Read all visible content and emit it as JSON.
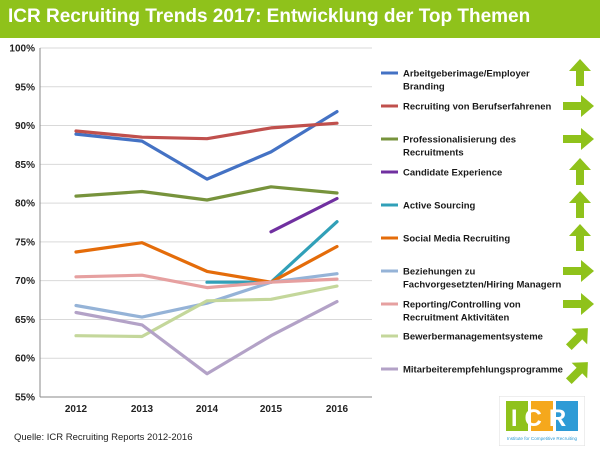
{
  "header": {
    "title": "ICR Recruiting Trends 2017: Entwicklung der Top Themen"
  },
  "footer": {
    "source": "Quelle: ICR Recruiting Reports 2012-2016"
  },
  "logo": {
    "text": "ICR",
    "tagline": "Institute for Competitive Recruiting"
  },
  "colors": {
    "title_bar": "#8fc21b",
    "arrow": "#8fc21b"
  },
  "chart_data": {
    "type": "line",
    "title": "ICR Recruiting Trends 2017: Entwicklung der Top Themen",
    "x": [
      "2012",
      "2013",
      "2014",
      "2015",
      "2016"
    ],
    "ylim": [
      55,
      100
    ],
    "yticks": [
      55,
      60,
      65,
      70,
      75,
      80,
      85,
      90,
      95,
      100
    ],
    "ytick_labels": [
      "55%",
      "60%",
      "65%",
      "70%",
      "75%",
      "80%",
      "85%",
      "90%",
      "95%",
      "100%"
    ],
    "legend_position": "right",
    "series": [
      {
        "name": "Arbeitgeberimage/Employer Branding",
        "label_lines": [
          "Arbeitgeberimage/Employer",
          "Branding"
        ],
        "color": "#4472c4",
        "values": [
          88.9,
          88.0,
          83.1,
          86.6,
          91.8
        ],
        "trend": "up"
      },
      {
        "name": "Recruiting von Berufserfahrenen",
        "label_lines": [
          "Recruiting von Berufserfahrenen"
        ],
        "color": "#c0504d",
        "values": [
          89.3,
          88.5,
          88.3,
          89.7,
          90.3
        ],
        "trend": "right"
      },
      {
        "name": "Professionalisierung des Recruitments",
        "label_lines": [
          "Professionalisierung des",
          "Recruitments"
        ],
        "color": "#77933c",
        "values": [
          80.9,
          81.5,
          80.4,
          82.1,
          81.3
        ],
        "trend": "right"
      },
      {
        "name": "Candidate Experience",
        "label_lines": [
          "Candidate Experience"
        ],
        "color": "#7030a0",
        "values": [
          null,
          null,
          null,
          76.3,
          80.6
        ],
        "trend": "up"
      },
      {
        "name": "Active Sourcing",
        "label_lines": [
          "Active Sourcing"
        ],
        "color": "#31a0b8",
        "values": [
          null,
          null,
          69.8,
          69.8,
          77.6
        ],
        "trend": "up"
      },
      {
        "name": "Social Media Recruiting",
        "label_lines": [
          "Social Media Recruiting"
        ],
        "color": "#e46c0a",
        "values": [
          73.7,
          74.9,
          71.2,
          69.8,
          74.4
        ],
        "trend": "up"
      },
      {
        "name": "Beziehungen zu Fachvorgesetzten/Hiring Managern",
        "label_lines": [
          "Beziehungen zu",
          "Fachvorgesetzten/Hiring Managern"
        ],
        "color": "#95b3d7",
        "values": [
          66.8,
          65.3,
          67.1,
          69.8,
          70.9
        ],
        "trend": "right"
      },
      {
        "name": "Reporting/Controlling von Recruitment Aktivitäten",
        "label_lines": [
          "Reporting/Controlling von",
          "Recruitment Aktivitäten"
        ],
        "color": "#e6a0a0",
        "values": [
          70.5,
          70.7,
          69.1,
          69.8,
          70.2
        ],
        "trend": "right"
      },
      {
        "name": "Bewerbermanagementsysteme",
        "label_lines": [
          "Bewerbermanagementsysteme"
        ],
        "color": "#c4d79b",
        "values": [
          62.9,
          62.8,
          67.4,
          67.6,
          69.3
        ],
        "trend": "up-right"
      },
      {
        "name": "Mitarbeiterempfehlungsprogramme",
        "label_lines": [
          "Mitarbeiterempfehlungsprogramme"
        ],
        "color": "#b3a2c7",
        "values": [
          65.9,
          64.3,
          58.0,
          62.9,
          67.3
        ],
        "trend": "up-right"
      }
    ]
  }
}
